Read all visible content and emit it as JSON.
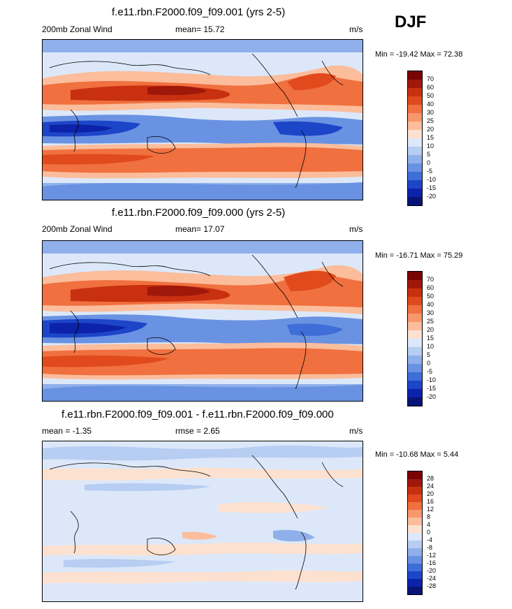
{
  "season": "DJF",
  "panels": [
    {
      "title": "f.e11.rbn.F2000.f09_f09.001 (yrs 2-5)",
      "left": "200mb Zonal Wind",
      "center": "mean=  15.72",
      "right": "m/s",
      "minmax": "Min = -19.42 Max =  72.38",
      "kind": "full",
      "levels": [
        "70",
        "60",
        "50",
        "40",
        "30",
        "25",
        "20",
        "15",
        "10",
        "5",
        "0",
        "-5",
        "-10",
        "-15",
        "-20"
      ]
    },
    {
      "title": "f.e11.rbn.F2000.f09_f09.000 (yrs 2-5)",
      "left": "200mb Zonal Wind",
      "center": "mean=  17.07",
      "right": "m/s",
      "minmax": "Min = -16.71 Max =  75.29",
      "kind": "full",
      "levels": [
        "70",
        "60",
        "50",
        "40",
        "30",
        "25",
        "20",
        "15",
        "10",
        "5",
        "0",
        "-5",
        "-10",
        "-15",
        "-20"
      ]
    },
    {
      "title": "f.e11.rbn.F2000.f09_f09.001 - f.e11.rbn.F2000.f09_f09.000",
      "left": "mean =  -1.35",
      "center": "rmse =   2.65",
      "right": "m/s",
      "minmax": "Min = -10.68 Max =   5.44",
      "kind": "diff",
      "levels": [
        "28",
        "24",
        "20",
        "16",
        "12",
        "8",
        "4",
        "0",
        "-4",
        "-8",
        "-12",
        "-16",
        "-20",
        "-24",
        "-28"
      ]
    }
  ],
  "colors": {
    "full": [
      "#7a0403",
      "#a0180a",
      "#c8300f",
      "#e04a1c",
      "#f0703f",
      "#f7976b",
      "#fbbd9b",
      "#fde1d0",
      "#dce8f9",
      "#b7cdf2",
      "#8fb0ea",
      "#6a92e2",
      "#3f6ed8",
      "#1d45c8",
      "#0c22a8",
      "#081578"
    ],
    "diff": [
      "#7a0403",
      "#a0180a",
      "#c8300f",
      "#e04a1c",
      "#f0703f",
      "#f7976b",
      "#fbbd9b",
      "#fde1d0",
      "#dce8f9",
      "#b7cdf2",
      "#8fb0ea",
      "#6a92e2",
      "#3f6ed8",
      "#1d45c8",
      "#0c22a8",
      "#081578"
    ]
  }
}
